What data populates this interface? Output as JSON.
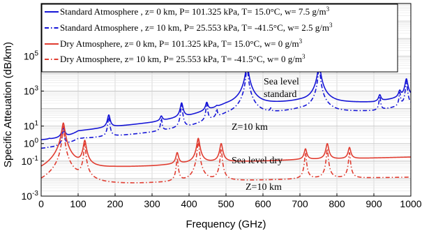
{
  "chart_data": {
    "type": "line",
    "xlabel": "Frequency (GHz)",
    "ylabel": "Specific Atteuation (dB/km)",
    "xlim": [
      0,
      1000
    ],
    "ylim": [
      0.001,
      100000000
    ],
    "yscale": "log",
    "grid": true,
    "legend_position": "top-left",
    "x_ticks": [
      "0",
      "100",
      "200",
      "300",
      "400",
      "500",
      "600",
      "700",
      "800",
      "900",
      "1000"
    ],
    "y_ticks": [
      {
        "base": "10",
        "exp": "-3",
        "value": 0.001
      },
      {
        "base": "10",
        "exp": "-1",
        "value": 0.1
      },
      {
        "base": "10",
        "exp": "0",
        "value": 1
      },
      {
        "base": "10",
        "exp": "1",
        "value": 10
      },
      {
        "base": "10",
        "exp": "3",
        "value": 1000
      },
      {
        "base": "10",
        "exp": "5",
        "value": 100000
      }
    ],
    "series": [
      {
        "name_main": "Standard Atmosphere , z= 0 km, P= 101.325 kPa, T= 15.0°C, w= 7.5 g/m",
        "name_sup": "3",
        "color": "#1515d6",
        "dash": "solid",
        "baseline": [
          [
            0,
            0.02
          ],
          [
            100,
            3
          ],
          [
            200,
            6
          ],
          [
            300,
            10
          ],
          [
            400,
            25
          ],
          [
            500,
            120
          ],
          [
            600,
            160
          ],
          [
            700,
            240
          ],
          [
            800,
            200
          ],
          [
            900,
            220
          ],
          [
            1000,
            500
          ]
        ],
        "peaks": [
          [
            22,
            0.2
          ],
          [
            60,
            8
          ],
          [
            118,
            1.5
          ],
          [
            183,
            40
          ],
          [
            325,
            30
          ],
          [
            380,
            200
          ],
          [
            448,
            200
          ],
          [
            475,
            100
          ],
          [
            557,
            30000
          ],
          [
            621,
            150
          ],
          [
            752,
            30000
          ],
          [
            916,
            600
          ],
          [
            970,
            1000
          ],
          [
            988,
            5000
          ]
        ]
      },
      {
        "name_main": "Standard Atmosphere , z= 10 km, P= 25.553 kPa, T= -41.5°C, w= 2.5 g/m",
        "name_sup": "3",
        "color": "#1515d6",
        "dash": "dashdot",
        "baseline": [
          [
            0,
            0.02
          ],
          [
            100,
            1.2
          ],
          [
            200,
            1.6
          ],
          [
            300,
            2.5
          ],
          [
            400,
            5
          ],
          [
            500,
            30
          ],
          [
            600,
            40
          ],
          [
            700,
            80
          ],
          [
            800,
            60
          ],
          [
            900,
            70
          ],
          [
            1000,
            150
          ]
        ],
        "peaks": [
          [
            22,
            0.1
          ],
          [
            60,
            8
          ],
          [
            118,
            1.5
          ],
          [
            183,
            40
          ],
          [
            325,
            25
          ],
          [
            380,
            200
          ],
          [
            448,
            200
          ],
          [
            475,
            80
          ],
          [
            557,
            30000
          ],
          [
            621,
            80
          ],
          [
            752,
            30000
          ],
          [
            916,
            500
          ],
          [
            970,
            800
          ],
          [
            988,
            4000
          ]
        ]
      },
      {
        "name_main": "Dry Atmosphere, z= 0 km, P= 101.325 kPa, T= 15.0°C, w= 0 g/m",
        "name_sup": "3",
        "color": "#e03c30",
        "dash": "solid",
        "baseline": [
          [
            0,
            0.008
          ],
          [
            100,
            0.025
          ],
          [
            200,
            0.04
          ],
          [
            300,
            0.05
          ],
          [
            400,
            0.07
          ],
          [
            500,
            0.09
          ],
          [
            600,
            0.1
          ],
          [
            700,
            0.12
          ],
          [
            800,
            0.13
          ],
          [
            900,
            0.15
          ],
          [
            1000,
            0.17
          ]
        ],
        "peaks": [
          [
            60,
            15
          ],
          [
            118,
            1.5
          ],
          [
            368,
            0.3
          ],
          [
            425,
            2
          ],
          [
            487,
            1
          ],
          [
            715,
            0.5
          ],
          [
            774,
            1
          ],
          [
            834,
            0.6
          ]
        ]
      },
      {
        "name_main": "Dry Atmosphere, z= 10 km, P= 25.553 kPa, T= -41.5°C, w= 0 g/m",
        "name_sup": "3",
        "color": "#e03c30",
        "dash": "dashdot",
        "baseline": [
          [
            0,
            0.0015
          ],
          [
            100,
            0.003
          ],
          [
            200,
            0.004
          ],
          [
            300,
            0.005
          ],
          [
            400,
            0.006
          ],
          [
            500,
            0.007
          ],
          [
            600,
            0.008
          ],
          [
            700,
            0.009
          ],
          [
            800,
            0.01
          ],
          [
            900,
            0.011
          ],
          [
            1000,
            0.012
          ]
        ],
        "peaks": [
          [
            60,
            10
          ],
          [
            118,
            1
          ],
          [
            368,
            0.15
          ],
          [
            425,
            1.5
          ],
          [
            487,
            0.5
          ],
          [
            715,
            0.3
          ],
          [
            774,
            0.5
          ],
          [
            834,
            0.3
          ]
        ]
      }
    ],
    "annotations": [
      {
        "id": "sea-level",
        "text": "Sea level"
      },
      {
        "id": "standard",
        "text": "standard"
      },
      {
        "id": "z10-upper",
        "text": "Z=10 km"
      },
      {
        "id": "sea-level-dry",
        "text": "Sea level dry"
      },
      {
        "id": "z10-lower",
        "text": "Z=10 km"
      }
    ]
  }
}
